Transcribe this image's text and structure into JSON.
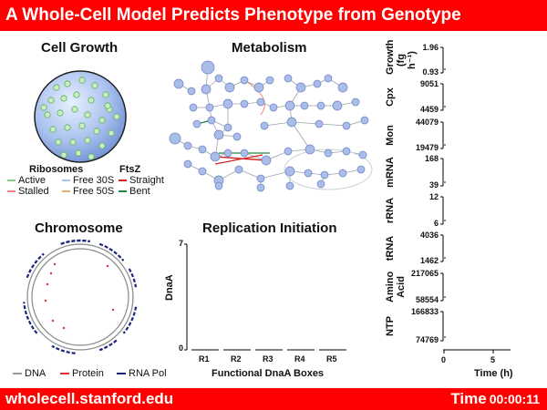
{
  "header": {
    "title": "A Whole-Cell Model Predicts Phenotype from Genotype"
  },
  "footer": {
    "url": "wholecell.stanford.edu",
    "time_label": "Time",
    "time_value": "00:00:11"
  },
  "cell_growth": {
    "title": "Cell Growth",
    "ribosomes_heading": "Ribosomes",
    "ftsz_heading": "FtsZ",
    "legend": [
      {
        "label": "Active",
        "color": "#7fd37f"
      },
      {
        "label": "Free 30S",
        "color": "#a8c4ec"
      },
      {
        "label": "Straight",
        "color": "#d42020"
      },
      {
        "label": "Stalled",
        "color": "#f08080"
      },
      {
        "label": "Free 50S",
        "color": "#e8b070"
      },
      {
        "label": "Bent",
        "color": "#1d8a3a"
      }
    ]
  },
  "metabolism": {
    "title": "Metabolism"
  },
  "chromosome": {
    "title": "Chromosome",
    "legend": [
      {
        "label": "DNA",
        "color": "#999999"
      },
      {
        "label": "Protein",
        "color": "#e03030"
      },
      {
        "label": "RNA Pol",
        "color": "#1a237e"
      }
    ]
  },
  "replication": {
    "title": "Replication Initiation",
    "ylabel": "DnaA",
    "xlabel": "Functional DnaA Boxes",
    "ytick_top": "7",
    "ytick_bottom": "0",
    "boxes": [
      "R1",
      "R2",
      "R3",
      "R4",
      "R5"
    ]
  },
  "timeseries": {
    "xlabel": "Time (h)",
    "xticks": [
      "0",
      "5"
    ],
    "panels": [
      {
        "label": "Growth (fg h⁻¹)",
        "top": "1.96",
        "bottom": "0.93"
      },
      {
        "label": "Cpx",
        "top": "9051",
        "bottom": "4459"
      },
      {
        "label": "Mon",
        "top": "44079",
        "bottom": "19479"
      },
      {
        "label": "mRNA",
        "top": "168",
        "bottom": "39"
      },
      {
        "label": "rRNA",
        "top": "12",
        "bottom": "6"
      },
      {
        "label": "tRNA",
        "top": "4036",
        "bottom": "1462"
      },
      {
        "label": "Amino Acid",
        "top": "217065",
        "bottom": "58554"
      },
      {
        "label": "NTP",
        "top": "166833",
        "bottom": "74769"
      }
    ]
  },
  "colors": {
    "banner": "#ff0000",
    "node": "#aabde8",
    "nodeStroke": "#6a82c0"
  }
}
